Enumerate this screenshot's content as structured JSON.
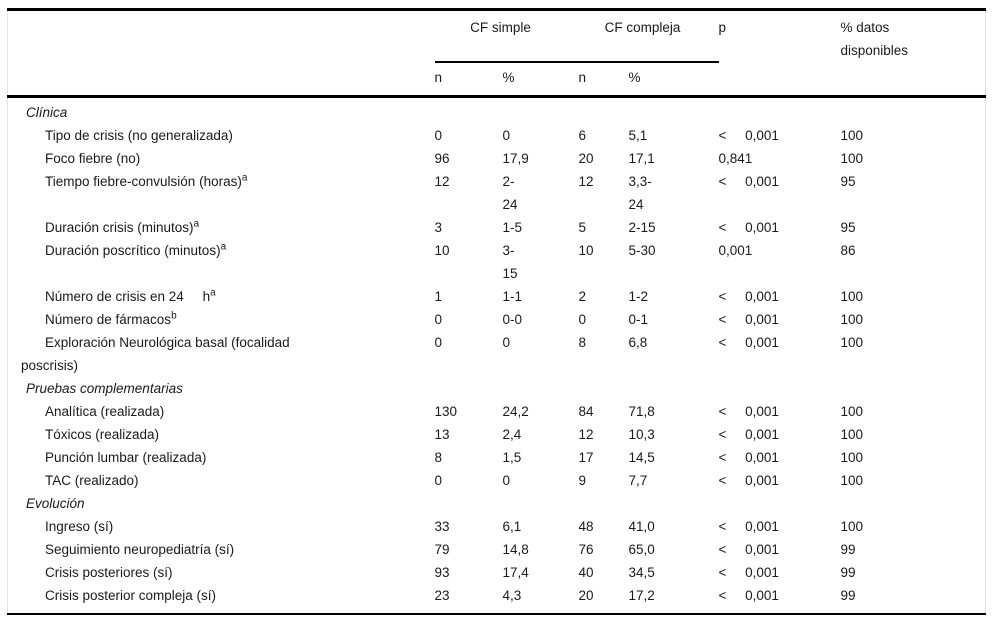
{
  "table": {
    "header": {
      "group1": "CF simple",
      "group2": "CF compleja",
      "col_p": "p",
      "col_pct": "% datos\ndisponibles",
      "sub_n1": "n",
      "sub_p1": "%",
      "sub_n2": "n",
      "sub_p2": "%"
    },
    "rows": [
      {
        "type": "section",
        "label": "Clínica"
      },
      {
        "type": "item",
        "label": "Tipo de crisis (no generalizada)",
        "n1": "0",
        "p1": "0",
        "n2": "6",
        "p2": "5,1",
        "p": "<     0,001",
        "pct": "100"
      },
      {
        "type": "item",
        "label": "Foco fiebre (no)",
        "n1": "96",
        "p1": "17,9",
        "n2": "20",
        "p2": "17,1",
        "p": "0,841",
        "pct": "100"
      },
      {
        "type": "item",
        "label": "Tiempo fiebre-convulsión (horas)",
        "sup": "a",
        "n1": "12",
        "p1": "2-\n24",
        "n2": "12",
        "p2": "3,3-\n24",
        "p": "<     0,001",
        "pct": "95"
      },
      {
        "type": "item",
        "label": "Duración crisis (minutos)",
        "sup": "a",
        "n1": "3",
        "p1": "1-5",
        "n2": "5",
        "p2": "2-15",
        "p": "<     0,001",
        "pct": "95"
      },
      {
        "type": "item",
        "label": "Duración poscrítico (minutos)",
        "sup": "a",
        "n1": "10",
        "p1": "3-\n15",
        "n2": "10",
        "p2": "5-30",
        "p": "0,001",
        "pct": "86"
      },
      {
        "type": "item",
        "label": "Número de crisis en 24     h",
        "sup": "a",
        "n1": "1",
        "p1": "1-1",
        "n2": "2",
        "p2": "1-2",
        "p": "<     0,001",
        "pct": "100"
      },
      {
        "type": "item",
        "label": "Número de fármacos",
        "sup": "b",
        "n1": "0",
        "p1": "0-0",
        "n2": "0",
        "p2": "0-1",
        "p": "<     0,001",
        "pct": "100"
      },
      {
        "type": "item",
        "label": "Exploración Neurológica basal (focalidad\nposcrisis)",
        "n1": "0",
        "p1": "0",
        "n2": "8",
        "p2": "6,8",
        "p": "<     0,001",
        "pct": "100"
      },
      {
        "type": "section",
        "label": "Pruebas complementarias"
      },
      {
        "type": "item",
        "label": "Analítica (realizada)",
        "n1": "130",
        "p1": "24,2",
        "n2": "84",
        "p2": "71,8",
        "p": "<     0,001",
        "pct": "100"
      },
      {
        "type": "item",
        "label": "Tóxicos (realizada)",
        "n1": "13",
        "p1": "2,4",
        "n2": "12",
        "p2": "10,3",
        "p": "<     0,001",
        "pct": "100"
      },
      {
        "type": "item",
        "label": "Punción lumbar (realizada)",
        "n1": "8",
        "p1": "1,5",
        "n2": "17",
        "p2": "14,5",
        "p": "<     0,001",
        "pct": "100"
      },
      {
        "type": "item",
        "label": "TAC (realizado)",
        "n1": "0",
        "p1": "0",
        "n2": "9",
        "p2": "7,7",
        "p": "<     0,001",
        "pct": "100"
      },
      {
        "type": "section",
        "label": "Evolución"
      },
      {
        "type": "item",
        "label": "Ingreso (sí)",
        "n1": "33",
        "p1": "6,1",
        "n2": "48",
        "p2": "41,0",
        "p": "<     0,001",
        "pct": "100"
      },
      {
        "type": "item",
        "label": "Seguimiento neuropediatría (sí)",
        "n1": "79",
        "p1": "14,8",
        "n2": "76",
        "p2": "65,0",
        "p": "<     0,001",
        "pct": "99"
      },
      {
        "type": "item",
        "label": "Crisis posteriores (sí)",
        "n1": "93",
        "p1": "17,4",
        "n2": "40",
        "p2": "34,5",
        "p": "<     0,001",
        "pct": "99"
      },
      {
        "type": "item",
        "label": "Crisis posterior compleja (sí)",
        "n1": "23",
        "p1": "4,3",
        "n2": "20",
        "p2": "17,2",
        "p": "<     0,001",
        "pct": "99"
      }
    ]
  }
}
